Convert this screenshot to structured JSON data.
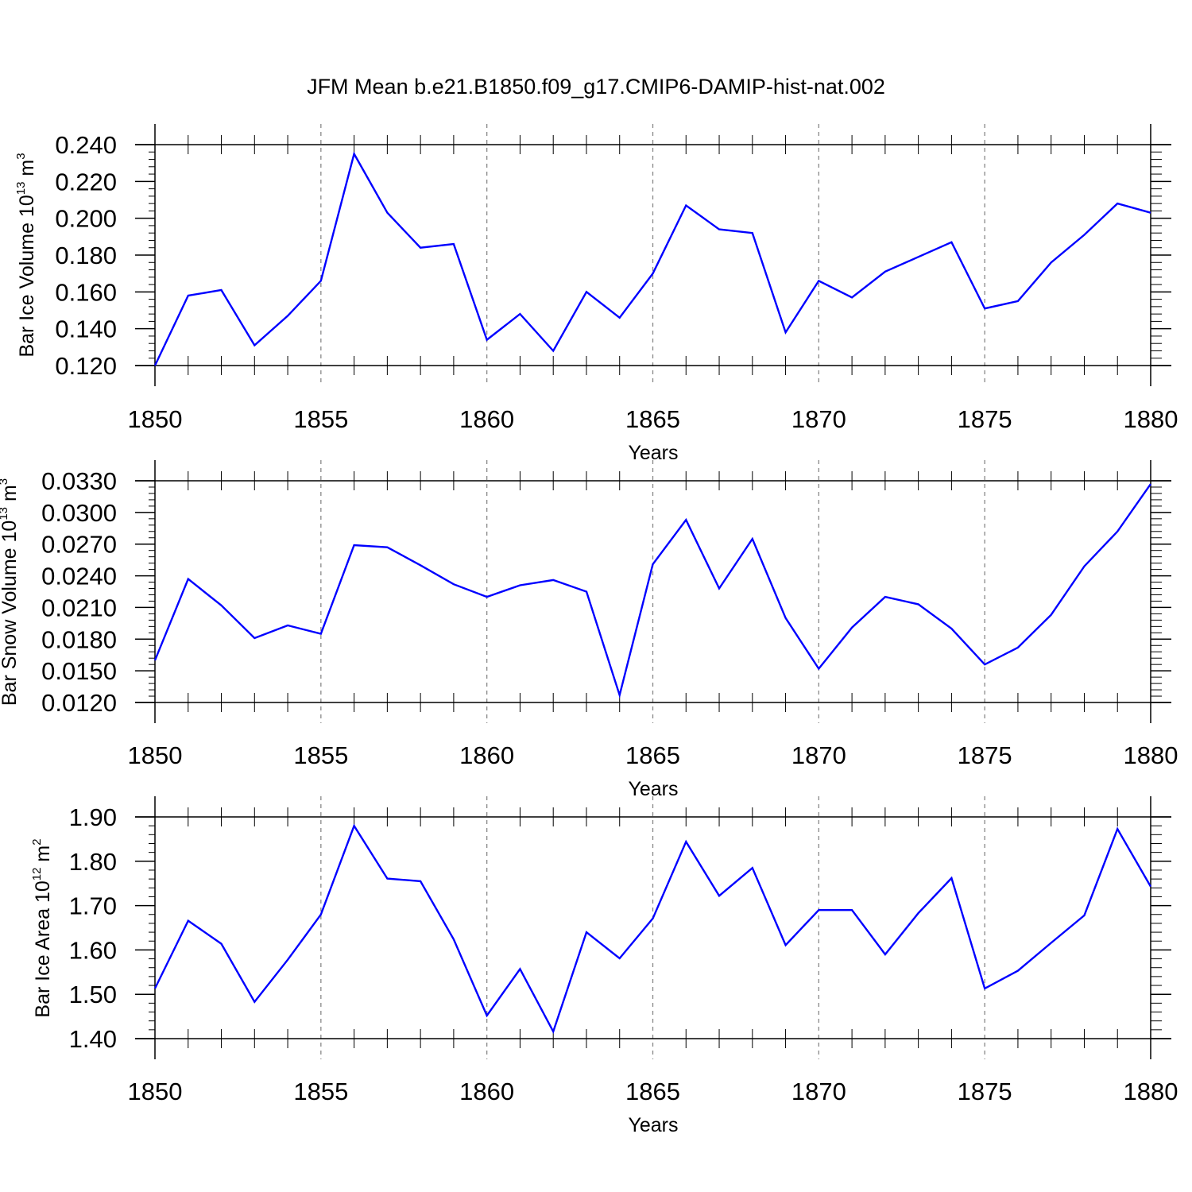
{
  "figure": {
    "title": "JFM Mean b.e21.B1850.f09_g17.CMIP6-DAMIP-hist-nat.002"
  },
  "colors": {
    "line": "#0000ff",
    "axis": "#000000",
    "grid": "#888888",
    "background": "#ffffff"
  },
  "chart_data": [
    {
      "type": "line",
      "name": "ice-volume",
      "ylabel_prefix": "Bar Ice Volume 10",
      "ylabel_exp": "13",
      "ylabel_unit": " m",
      "ylabel_unit_exp": "3",
      "xlabel": "Years",
      "xlim": [
        1850,
        1880
      ],
      "ylim": [
        0.12,
        0.24
      ],
      "x_ticks": [
        "1850",
        "1855",
        "1860",
        "1865",
        "1870",
        "1875",
        "1880"
      ],
      "y_ticks": [
        "0.120",
        "0.140",
        "0.160",
        "0.180",
        "0.200",
        "0.220",
        "0.240"
      ],
      "x": [
        1850,
        1851,
        1852,
        1853,
        1854,
        1855,
        1856,
        1857,
        1858,
        1859,
        1860,
        1861,
        1862,
        1863,
        1864,
        1865,
        1866,
        1867,
        1868,
        1869,
        1870,
        1871,
        1872,
        1873,
        1874,
        1875,
        1876,
        1877,
        1878,
        1879,
        1880
      ],
      "values": [
        0.12,
        0.158,
        0.161,
        0.131,
        0.147,
        0.166,
        0.235,
        0.203,
        0.184,
        0.186,
        0.134,
        0.148,
        0.128,
        0.16,
        0.146,
        0.17,
        0.207,
        0.194,
        0.192,
        0.138,
        0.166,
        0.157,
        0.171,
        0.179,
        0.187,
        0.151,
        0.155,
        0.176,
        0.191,
        0.208,
        0.203
      ]
    },
    {
      "type": "line",
      "name": "snow-volume",
      "ylabel_prefix": "Bar Snow Volume 10",
      "ylabel_exp": "13",
      "ylabel_unit": " m",
      "ylabel_unit_exp": "3",
      "xlabel": "Years",
      "xlim": [
        1850,
        1880
      ],
      "ylim": [
        0.012,
        0.033
      ],
      "x_ticks": [
        "1850",
        "1855",
        "1860",
        "1865",
        "1870",
        "1875",
        "1880"
      ],
      "y_ticks": [
        "0.0120",
        "0.0150",
        "0.0180",
        "0.0210",
        "0.0240",
        "0.0270",
        "0.0300",
        "0.0330"
      ],
      "x": [
        1850,
        1851,
        1852,
        1853,
        1854,
        1855,
        1856,
        1857,
        1858,
        1859,
        1860,
        1861,
        1862,
        1863,
        1864,
        1865,
        1866,
        1867,
        1868,
        1869,
        1870,
        1871,
        1872,
        1873,
        1874,
        1875,
        1876,
        1877,
        1878,
        1879,
        1880
      ],
      "values": [
        0.016,
        0.0237,
        0.0212,
        0.0181,
        0.0193,
        0.0185,
        0.0269,
        0.0267,
        0.025,
        0.0232,
        0.022,
        0.0231,
        0.0236,
        0.0225,
        0.0127,
        0.0251,
        0.0293,
        0.0228,
        0.0275,
        0.02,
        0.0152,
        0.0191,
        0.022,
        0.0213,
        0.019,
        0.0156,
        0.0172,
        0.0203,
        0.0249,
        0.0282,
        0.0327
      ]
    },
    {
      "type": "line",
      "name": "ice-area",
      "ylabel_prefix": "Bar Ice Area 10",
      "ylabel_exp": "12",
      "ylabel_unit": " m",
      "ylabel_unit_exp": "2",
      "xlabel": "Years",
      "xlim": [
        1850,
        1880
      ],
      "ylim": [
        1.4,
        1.9
      ],
      "x_ticks": [
        "1850",
        "1855",
        "1860",
        "1865",
        "1870",
        "1875",
        "1880"
      ],
      "y_ticks": [
        "1.40",
        "1.50",
        "1.60",
        "1.70",
        "1.80",
        "1.90"
      ],
      "x": [
        1850,
        1851,
        1852,
        1853,
        1854,
        1855,
        1856,
        1857,
        1858,
        1859,
        1860,
        1861,
        1862,
        1863,
        1864,
        1865,
        1866,
        1867,
        1868,
        1869,
        1870,
        1871,
        1872,
        1873,
        1874,
        1875,
        1876,
        1877,
        1878,
        1879,
        1880
      ],
      "values": [
        1.513,
        1.666,
        1.614,
        1.483,
        1.578,
        1.68,
        1.88,
        1.761,
        1.755,
        1.624,
        1.452,
        1.557,
        1.416,
        1.64,
        1.581,
        1.671,
        1.844,
        1.722,
        1.785,
        1.611,
        1.69,
        1.69,
        1.59,
        1.683,
        1.762,
        1.513,
        1.553,
        1.616,
        1.678,
        1.873,
        1.743
      ]
    }
  ]
}
